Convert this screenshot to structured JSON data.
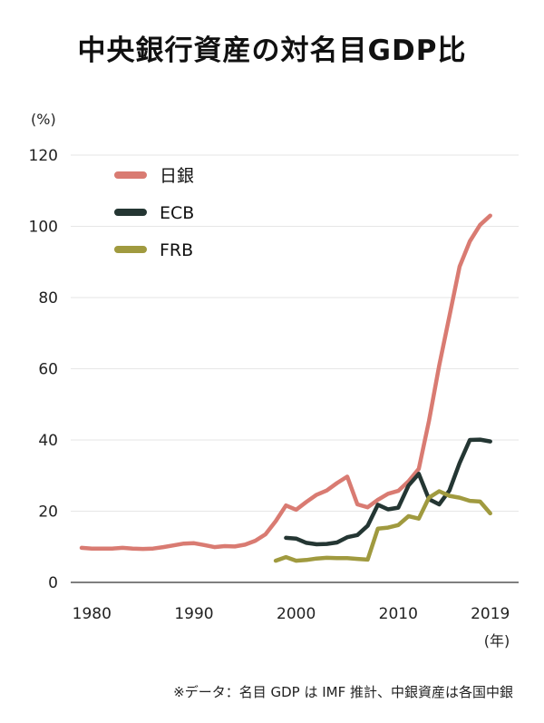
{
  "chart_data": {
    "type": "line",
    "title": "中央銀行資産の対名目GDP比",
    "y_unit": "(%)",
    "x_unit": "(年)",
    "source": "※データ：名目 GDP は IMF 推計、中銀資産は各国中銀",
    "ylim": [
      0,
      120
    ],
    "xlim": [
      1979,
      2020
    ],
    "yticks": [
      "0",
      "20",
      "40",
      "60",
      "80",
      "100",
      "120"
    ],
    "xticks": [
      "1980",
      "1990",
      "2000",
      "2010",
      "2019"
    ],
    "grid": true,
    "legend_position": "top-left",
    "series": [
      {
        "name": "日銀",
        "color": "#d97b72",
        "points": [
          [
            1979,
            9.7
          ],
          [
            1980,
            9.5
          ],
          [
            1981,
            9.5
          ],
          [
            1982,
            9.5
          ],
          [
            1983,
            9.7
          ],
          [
            1984,
            9.5
          ],
          [
            1985,
            9.4
          ],
          [
            1986,
            9.5
          ],
          [
            1987,
            9.9
          ],
          [
            1988,
            10.4
          ],
          [
            1989,
            10.9
          ],
          [
            1990,
            11.0
          ],
          [
            1991,
            10.5
          ],
          [
            1992,
            9.9
          ],
          [
            1993,
            10.2
          ],
          [
            1994,
            10.1
          ],
          [
            1995,
            10.6
          ],
          [
            1996,
            11.7
          ],
          [
            1997,
            13.5
          ],
          [
            1998,
            17.2
          ],
          [
            1999,
            21.6
          ],
          [
            2000,
            20.4
          ],
          [
            2001,
            22.6
          ],
          [
            2002,
            24.6
          ],
          [
            2003,
            25.8
          ],
          [
            2004,
            27.9
          ],
          [
            2005,
            29.7
          ],
          [
            2006,
            21.9
          ],
          [
            2007,
            21.1
          ],
          [
            2008,
            23.2
          ],
          [
            2009,
            24.9
          ],
          [
            2010,
            25.7
          ],
          [
            2011,
            28.4
          ],
          [
            2012,
            31.9
          ],
          [
            2013,
            45.3
          ],
          [
            2014,
            60.9
          ],
          [
            2015,
            74.8
          ],
          [
            2016,
            88.7
          ],
          [
            2017,
            95.8
          ],
          [
            2018,
            100.4
          ],
          [
            2019,
            103.0
          ]
        ]
      },
      {
        "name": "ECB",
        "color": "#243633",
        "points": [
          [
            1999,
            12.5
          ],
          [
            2000,
            12.3
          ],
          [
            2001,
            11.1
          ],
          [
            2002,
            10.7
          ],
          [
            2003,
            10.8
          ],
          [
            2004,
            11.2
          ],
          [
            2005,
            12.7
          ],
          [
            2006,
            13.3
          ],
          [
            2007,
            15.9
          ],
          [
            2008,
            21.8
          ],
          [
            2009,
            20.5
          ],
          [
            2010,
            21.0
          ],
          [
            2011,
            27.2
          ],
          [
            2012,
            30.5
          ],
          [
            2013,
            23.4
          ],
          [
            2014,
            21.9
          ],
          [
            2015,
            25.8
          ],
          [
            2016,
            33.5
          ],
          [
            2017,
            40.0
          ],
          [
            2018,
            40.1
          ],
          [
            2019,
            39.6
          ]
        ]
      },
      {
        "name": "FRB",
        "color": "#a09a3f",
        "points": [
          [
            1998,
            6.1
          ],
          [
            1999,
            7.1
          ],
          [
            2000,
            6.1
          ],
          [
            2001,
            6.3
          ],
          [
            2002,
            6.7
          ],
          [
            2003,
            6.9
          ],
          [
            2004,
            6.8
          ],
          [
            2005,
            6.8
          ],
          [
            2006,
            6.6
          ],
          [
            2007,
            6.4
          ],
          [
            2008,
            15.1
          ],
          [
            2009,
            15.4
          ],
          [
            2010,
            16.1
          ],
          [
            2011,
            18.6
          ],
          [
            2012,
            17.9
          ],
          [
            2013,
            23.8
          ],
          [
            2014,
            25.6
          ],
          [
            2015,
            24.3
          ],
          [
            2016,
            23.8
          ],
          [
            2017,
            22.9
          ],
          [
            2018,
            22.7
          ],
          [
            2019,
            19.4
          ]
        ]
      }
    ]
  }
}
